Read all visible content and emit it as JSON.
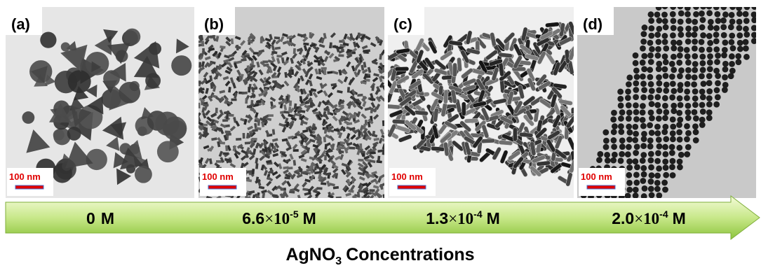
{
  "panels": [
    {
      "label": "(a)",
      "scale_bar": "100 nm",
      "concentration": {
        "coefficient": "0",
        "unit": "M"
      }
    },
    {
      "label": "(b)",
      "scale_bar": "100 nm",
      "concentration": {
        "coefficient": "6.6",
        "times": "×",
        "base": "10",
        "exponent": "-5",
        "unit": "M"
      }
    },
    {
      "label": "(c)",
      "scale_bar": "100 nm",
      "concentration": {
        "coefficient": "1.3",
        "times": "×",
        "base": "10",
        "exponent": "-4",
        "unit": "M"
      }
    },
    {
      "label": "(d)",
      "scale_bar": "100 nm",
      "concentration": {
        "coefficient": "2.0",
        "times": "×",
        "base": "10",
        "exponent": "-4",
        "unit": "M"
      }
    }
  ],
  "x_label": {
    "main": "AgNO",
    "subscript": "3",
    "rest": "Concentrations"
  }
}
